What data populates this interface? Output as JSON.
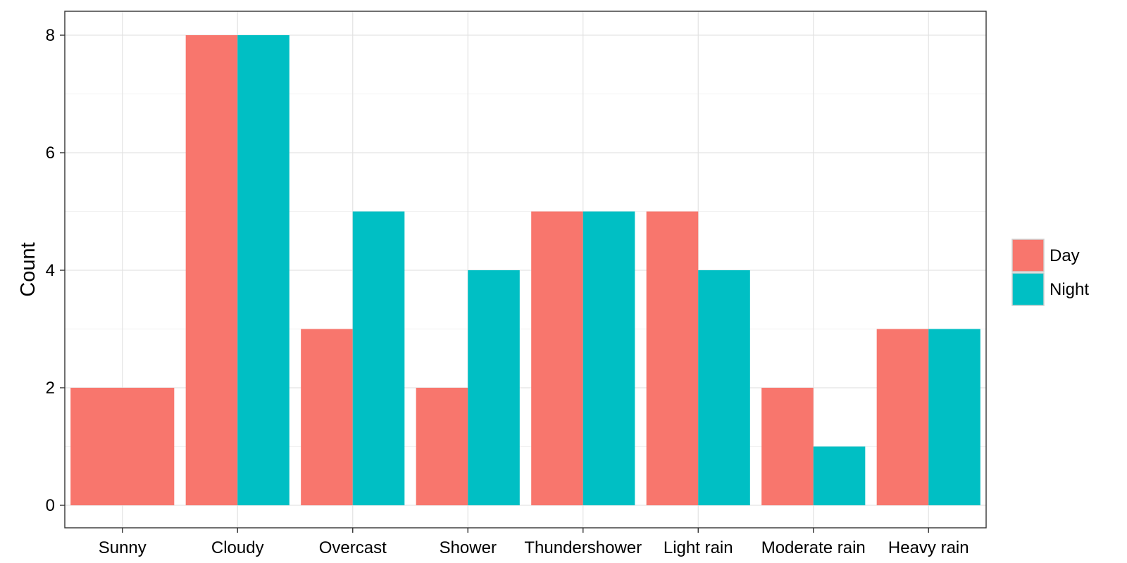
{
  "chart_data": {
    "type": "bar",
    "title": "",
    "xlabel": "",
    "ylabel": "Count",
    "ylim": [
      0,
      8
    ],
    "yticks": [
      0,
      2,
      4,
      6,
      8
    ],
    "grid": true,
    "legend_position": "right",
    "stacking": "dodge",
    "categories": [
      "Sunny",
      "Cloudy",
      "Overcast",
      "Shower",
      "Thundershower",
      "Light rain",
      "Moderate rain",
      "Heavy rain"
    ],
    "series": [
      {
        "name": "Day",
        "color": "#F8766D",
        "values": [
          2,
          8,
          3,
          2,
          5,
          5,
          2,
          3
        ]
      },
      {
        "name": "Night",
        "color": "#00BFC4",
        "values": [
          null,
          8,
          5,
          4,
          5,
          4,
          1,
          3
        ]
      }
    ]
  }
}
